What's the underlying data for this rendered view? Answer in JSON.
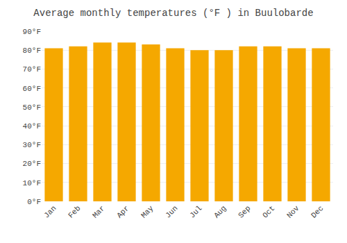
{
  "chart_data": {
    "type": "bar",
    "title": "Average monthly temperatures (°F ) in Buulobarde",
    "categories": [
      "Jan",
      "Feb",
      "Mar",
      "Apr",
      "May",
      "Jun",
      "Jul",
      "Aug",
      "Sep",
      "Oct",
      "Nov",
      "Dec"
    ],
    "values": [
      81,
      82,
      84,
      84,
      83,
      81,
      80,
      80,
      82,
      82,
      81,
      81
    ],
    "color": "#F5A800",
    "ylim": [
      0,
      90
    ],
    "yticks": [
      {
        "value": 0,
        "label": "0°F"
      },
      {
        "value": 10,
        "label": "10°F"
      },
      {
        "value": 20,
        "label": "20°F"
      },
      {
        "value": 30,
        "label": "30°F"
      },
      {
        "value": 40,
        "label": "40°F"
      },
      {
        "value": 50,
        "label": "50°F"
      },
      {
        "value": 60,
        "label": "60°F"
      },
      {
        "value": 70,
        "label": "70°F"
      },
      {
        "value": 80,
        "label": "80°F"
      },
      {
        "value": 90,
        "label": "90°F"
      }
    ],
    "grid": true
  }
}
